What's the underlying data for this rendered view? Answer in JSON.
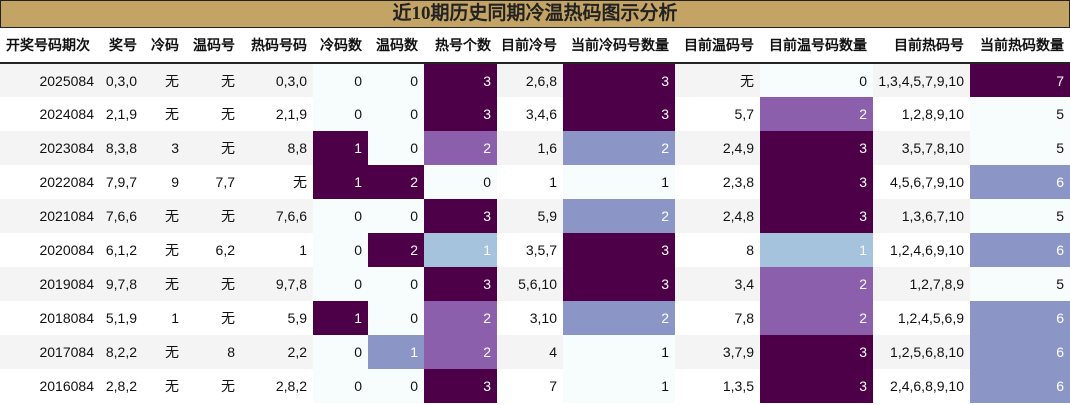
{
  "title": "近10期历史同期冷温热码图示分析",
  "colors": {
    "w": "#f7fcfd",
    "L": "#a6c3dd",
    "P": "#8c96c6",
    "M": "#8c5fac",
    "D": "#4d0048",
    "header_bg": "#c4a464"
  },
  "headers": [
    "开奖号码期次",
    "奖号",
    "冷码",
    "温码号",
    "热码号码",
    "冷码数",
    "温码数",
    "热号个数",
    "目前冷号",
    "当前冷码号数量",
    "目前温码号",
    "目前温号码数量",
    "目前热码号",
    "当前热码数量"
  ],
  "rows": [
    {
      "cells": [
        "2025084",
        "0,3,0",
        "无",
        "无",
        "0,3,0",
        "0",
        "0",
        "3",
        "2,6,8",
        "3",
        "无",
        "0",
        "1,3,4,5,7,9,10",
        "7"
      ],
      "heat": [
        "w",
        "w",
        "D",
        "D",
        "w",
        "D"
      ]
    },
    {
      "cells": [
        "2024084",
        "2,1,9",
        "无",
        "无",
        "2,1,9",
        "0",
        "0",
        "3",
        "3,4,6",
        "3",
        "5,7",
        "2",
        "1,2,8,9,10",
        "5"
      ],
      "heat": [
        "w",
        "w",
        "D",
        "D",
        "M",
        "w"
      ]
    },
    {
      "cells": [
        "2023084",
        "8,3,8",
        "3",
        "无",
        "8,8",
        "1",
        "0",
        "2",
        "1,6",
        "2",
        "2,4,9",
        "3",
        "3,5,7,8,10",
        "5"
      ],
      "heat": [
        "D",
        "w",
        "M",
        "P",
        "D",
        "w"
      ]
    },
    {
      "cells": [
        "2022084",
        "7,9,7",
        "9",
        "7,7",
        "无",
        "1",
        "2",
        "0",
        "1",
        "1",
        "2,3,8",
        "3",
        "4,5,6,7,9,10",
        "6"
      ],
      "heat": [
        "D",
        "D",
        "w",
        "w",
        "D",
        "P"
      ]
    },
    {
      "cells": [
        "2021084",
        "7,6,6",
        "无",
        "无",
        "7,6,6",
        "0",
        "0",
        "3",
        "5,9",
        "2",
        "2,4,8",
        "3",
        "1,3,6,7,10",
        "5"
      ],
      "heat": [
        "w",
        "w",
        "D",
        "P",
        "D",
        "w"
      ]
    },
    {
      "cells": [
        "2020084",
        "6,1,2",
        "无",
        "6,2",
        "1",
        "0",
        "2",
        "1",
        "3,5,7",
        "3",
        "8",
        "1",
        "1,2,4,6,9,10",
        "6"
      ],
      "heat": [
        "w",
        "D",
        "L",
        "D",
        "L",
        "P"
      ]
    },
    {
      "cells": [
        "2019084",
        "9,7,8",
        "无",
        "无",
        "9,7,8",
        "0",
        "0",
        "3",
        "5,6,10",
        "3",
        "3,4",
        "2",
        "1,2,7,8,9",
        "5"
      ],
      "heat": [
        "w",
        "w",
        "D",
        "D",
        "M",
        "w"
      ]
    },
    {
      "cells": [
        "2018084",
        "5,1,9",
        "1",
        "无",
        "5,9",
        "1",
        "0",
        "2",
        "3,10",
        "2",
        "7,8",
        "2",
        "1,2,4,5,6,9",
        "6"
      ],
      "heat": [
        "D",
        "w",
        "M",
        "P",
        "M",
        "P"
      ]
    },
    {
      "cells": [
        "2017084",
        "8,2,2",
        "无",
        "8",
        "2,2",
        "0",
        "1",
        "2",
        "4",
        "1",
        "3,7,9",
        "3",
        "1,2,5,6,8,10",
        "6"
      ],
      "heat": [
        "w",
        "P",
        "M",
        "w",
        "D",
        "P"
      ]
    },
    {
      "cells": [
        "2016084",
        "2,8,2",
        "无",
        "无",
        "2,8,2",
        "0",
        "0",
        "3",
        "7",
        "1",
        "1,3,5",
        "3",
        "2,4,6,8,9,10",
        "6"
      ],
      "heat": [
        "w",
        "w",
        "D",
        "w",
        "D",
        "P"
      ]
    }
  ]
}
